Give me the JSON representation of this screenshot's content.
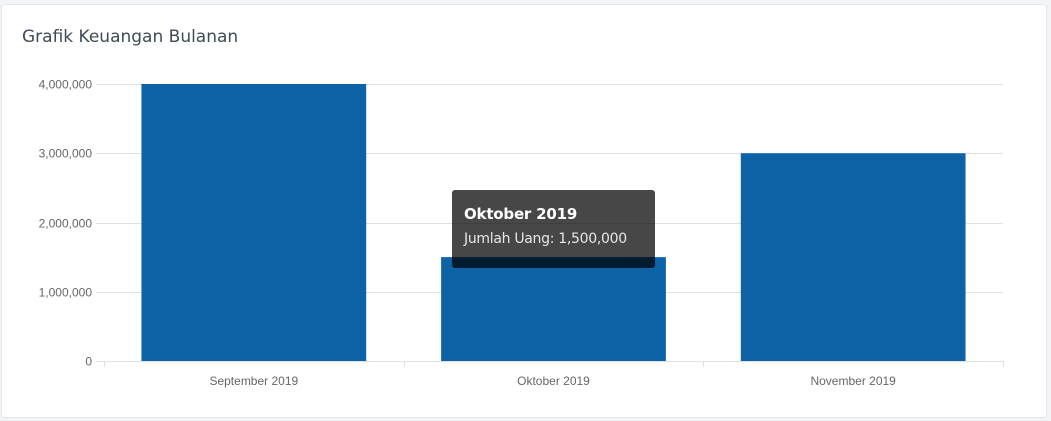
{
  "card": {
    "title": "Grafik Keuangan Bulanan"
  },
  "colors": {
    "bar": "#0d63a5",
    "grid": "#e1e1e1",
    "axis_text": "#666666"
  },
  "chart_data": {
    "type": "bar",
    "title": "",
    "xlabel": "",
    "ylabel": "",
    "categories": [
      "September 2019",
      "Oktober 2019",
      "November 2019"
    ],
    "series": [
      {
        "values": [
          4000000,
          1500000,
          3000000
        ]
      }
    ],
    "ylim": [
      0,
      4000000
    ],
    "yticks": [
      0,
      1000000,
      2000000,
      3000000,
      4000000
    ],
    "ytick_labels": [
      "0",
      "1,000,000",
      "2,000,000",
      "3,000,000",
      "4,000,000"
    ],
    "grid": true,
    "legend": "none"
  },
  "tooltip": {
    "title": "Oktober 2019",
    "body": "Jumlah Uang: 1,500,000"
  }
}
